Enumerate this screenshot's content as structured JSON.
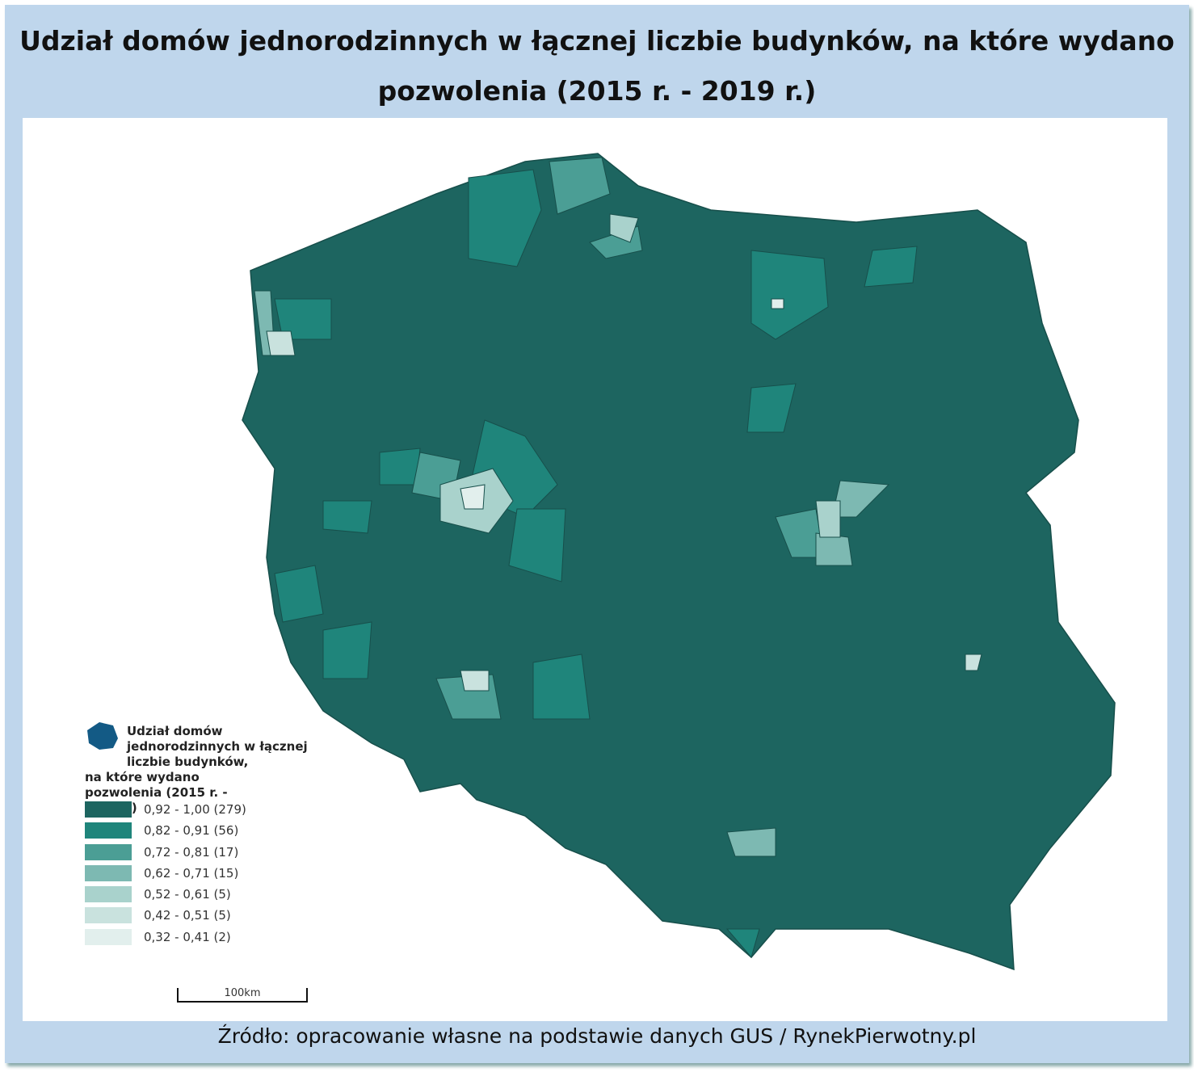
{
  "title": "Udział domów jednorodzinnych w łącznej liczbie budynków, na które wydano pozwolenia (2015 r. - 2019 r.)",
  "source": "Źródło: opracowanie własne na podstawie danych GUS / RynekPierwotny.pl",
  "legend": {
    "title": "Udział domów jednorodzinnych w łącznej liczbie budynków, na które wydano pozwolenia (2015 r. - 2019 r.)",
    "icon": "poland-map-icon",
    "icon_color": "#135a85",
    "classes": [
      {
        "label": "0,92 - 1,00 (279)",
        "color": "#1d6560"
      },
      {
        "label": "0,82 - 0,91 (56)",
        "color": "#1f857b"
      },
      {
        "label": "0,72 - 0,81 (17)",
        "color": "#4b9e95"
      },
      {
        "label": "0,62 - 0,71 (15)",
        "color": "#7db9b2"
      },
      {
        "label": "0,52 - 0,61 (5)",
        "color": "#a9d2cc"
      },
      {
        "label": "0,42 - 0,51 (5)",
        "color": "#c9e2de"
      },
      {
        "label": "0,32 - 0,41 (2)",
        "color": "#e2efed"
      }
    ]
  },
  "scale_bar": "100km",
  "colors": {
    "frame": "#bfd6ec"
  }
}
